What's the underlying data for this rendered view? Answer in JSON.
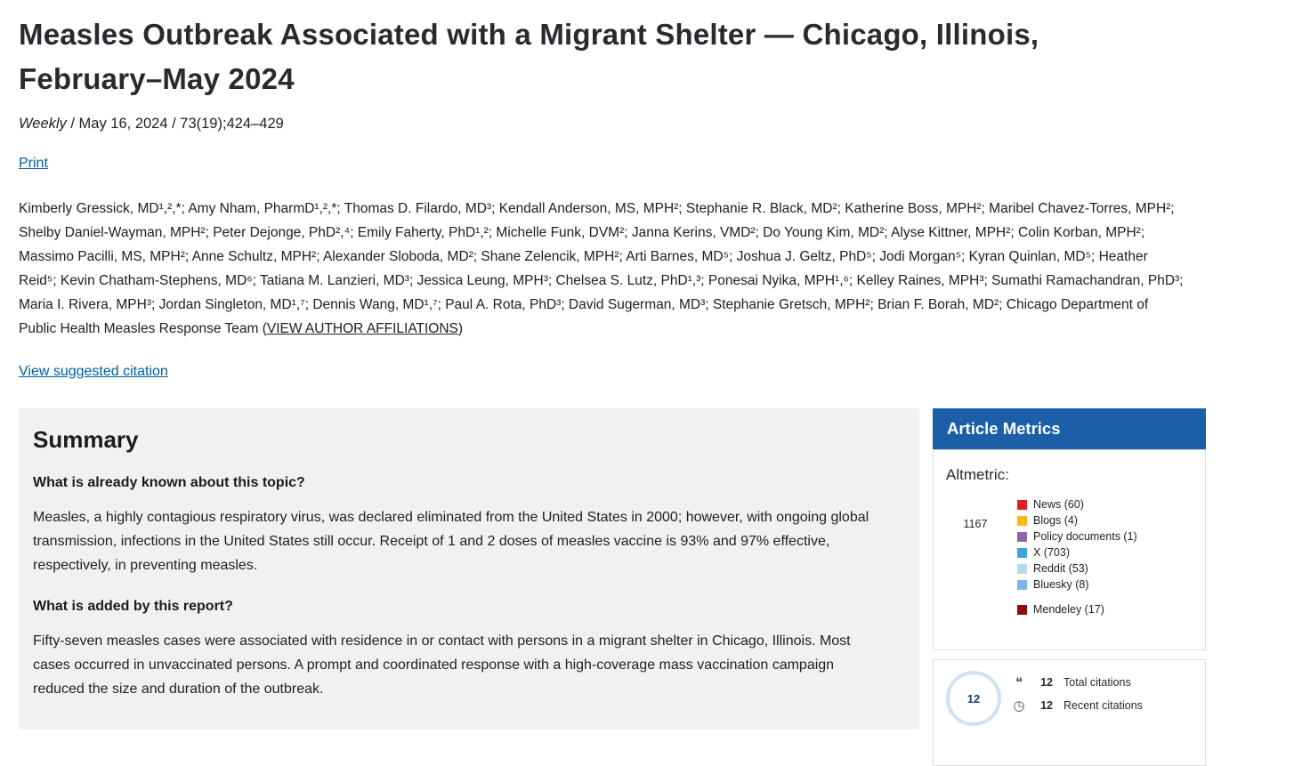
{
  "colors": {
    "link_blue": "#005ea2",
    "metrics_header_bg": "#1a5fa8",
    "summary_bg": "#f1f1f1"
  },
  "header": {
    "title": "Measles Outbreak Associated with a Migrant Shelter — Chicago, Illinois, February–May 2024",
    "journal": "Weekly",
    "issue": " / May 16, 2024 / 73(19);424–429",
    "print_label": "Print",
    "citation_label": "View suggested citation"
  },
  "authors": {
    "text": "Kimberly Gressick, MD¹,²,*; Amy Nham, PharmD¹,²,*; Thomas D. Filardo, MD³; Kendall Anderson, MS, MPH²; Stephanie R. Black, MD²; Katherine Boss, MPH²; Maribel Chavez-Torres, MPH²; Shelby Daniel-Wayman, MPH²; Peter Dejonge, PhD²,⁴; Emily Faherty, PhD¹,²; Michelle Funk, DVM²; Janna Kerins, VMD²; Do Young Kim, MD²; Alyse Kittner, MPH²; Colin Korban, MPH²; Massimo Pacilli, MS, MPH²; Anne Schultz, MPH²; Alexander Sloboda, MD²; Shane Zelencik, MPH²; Arti Barnes, MD⁵; Joshua J. Geltz, PhD⁵; Jodi Morgan⁵; Kyran Quinlan, MD⁵; Heather Reid⁵; Kevin Chatham-Stephens, MD⁶; Tatiana M. Lanzieri, MD³; Jessica Leung, MPH³; Chelsea S. Lutz, PhD¹,³; Ponesai Nyika, MPH¹,⁶; Kelley Raines, MPH³; Sumathi Ramachandran, PhD³; Maria I. Rivera, MPH³; Jordan Singleton, MD¹,⁷; Dennis Wang, MD¹,⁷; Paul A. Rota, PhD³; David Sugerman, MD³; Stephanie Gretsch, MPH²; Brian F. Borah, MD²; Chicago Department of Public Health Measles Response Team ",
    "affil_prefix": "(",
    "affiliations_link": "VIEW AUTHOR AFFILIATIONS",
    "affil_suffix": ")"
  },
  "summary": {
    "heading": "Summary",
    "q1": "What is already known about this topic?",
    "a1": "Measles, a highly contagious respiratory virus, was declared eliminated from the United States in 2000; however, with ongoing global transmission, infections in the United States still occur. Receipt of 1 and 2 doses of measles vaccine is 93% and 97% effective, respectively, in preventing measles.",
    "q2": "What is added by this report?",
    "a2": "Fifty-seven measles cases were associated with residence in or contact with persons in a migrant shelter in Chicago, Illinois. Most cases occurred in unvaccinated persons. A prompt and coordinated response with a high-coverage mass vaccination campaign reduced the size and duration of the outbreak."
  },
  "metrics": {
    "header": "Article Metrics",
    "altmetric_label": "Altmetric:",
    "altmetric_score": "1167",
    "legend": [
      {
        "label": "News (60)",
        "color": "#e02020"
      },
      {
        "label": "Blogs (4)",
        "color": "#ffb715"
      },
      {
        "label": "Policy documents (1)",
        "color": "#8f63a8"
      },
      {
        "label": "X (703)",
        "color": "#3ea2dd"
      },
      {
        "label": "Reddit (53)",
        "color": "#b8d9ee"
      },
      {
        "label": "Bluesky (8)",
        "color": "#77b7ea"
      }
    ],
    "mendeley": {
      "label": "Mendeley (17)",
      "color": "#930b0d"
    }
  },
  "citations": {
    "badge_value": "12",
    "quote_icon": "❝",
    "recent_icon": "◷",
    "total_value": "12",
    "total_label": "Total citations",
    "recent_value": "12",
    "recent_label": "Recent citations"
  }
}
